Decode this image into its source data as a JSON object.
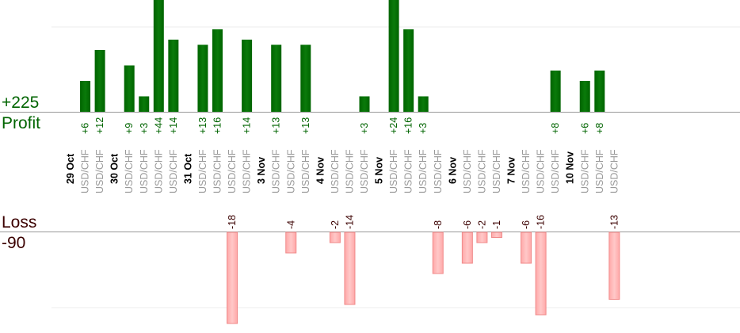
{
  "summary": {
    "profit_total": "+225",
    "profit_label": "Profit",
    "loss_label": "Loss",
    "loss_total": "-90"
  },
  "chart_data": {
    "type": "bar",
    "title": "",
    "xlabel": "",
    "ylabel": "",
    "bar_label": "USD/CHF",
    "profit_color": "#006400",
    "loss_color": "#ffb4b4",
    "dates": [
      "29 Oct",
      "30 Oct",
      "31 Oct",
      "3 Nov",
      "4 Nov",
      "5 Nov",
      "6 Nov",
      "7 Nov",
      "10 Nov"
    ],
    "trades": [
      {
        "date": "29 Oct",
        "value": 6
      },
      {
        "date": "29 Oct",
        "value": 12
      },
      {
        "date": "30 Oct",
        "value": 9
      },
      {
        "date": "30 Oct",
        "value": 3
      },
      {
        "date": "30 Oct",
        "value": 44
      },
      {
        "date": "30 Oct",
        "value": 14
      },
      {
        "date": "31 Oct",
        "value": 13
      },
      {
        "date": "31 Oct",
        "value": 16
      },
      {
        "date": "31 Oct",
        "value": -18
      },
      {
        "date": "31 Oct",
        "value": 14
      },
      {
        "date": "3 Nov",
        "value": 13
      },
      {
        "date": "3 Nov",
        "value": -4
      },
      {
        "date": "3 Nov",
        "value": 13
      },
      {
        "date": "4 Nov",
        "value": -2
      },
      {
        "date": "4 Nov",
        "value": -14
      },
      {
        "date": "4 Nov",
        "value": 3
      },
      {
        "date": "5 Nov",
        "value": 24
      },
      {
        "date": "5 Nov",
        "value": 16
      },
      {
        "date": "5 Nov",
        "value": 3
      },
      {
        "date": "5 Nov",
        "value": -8
      },
      {
        "date": "6 Nov",
        "value": -6
      },
      {
        "date": "6 Nov",
        "value": -2
      },
      {
        "date": "6 Nov",
        "value": -1
      },
      {
        "date": "7 Nov",
        "value": -6
      },
      {
        "date": "7 Nov",
        "value": -16
      },
      {
        "date": "7 Nov",
        "value": 8
      },
      {
        "date": "10 Nov",
        "value": 6
      },
      {
        "date": "10 Nov",
        "value": 8
      },
      {
        "date": "10 Nov",
        "value": -13
      }
    ]
  }
}
